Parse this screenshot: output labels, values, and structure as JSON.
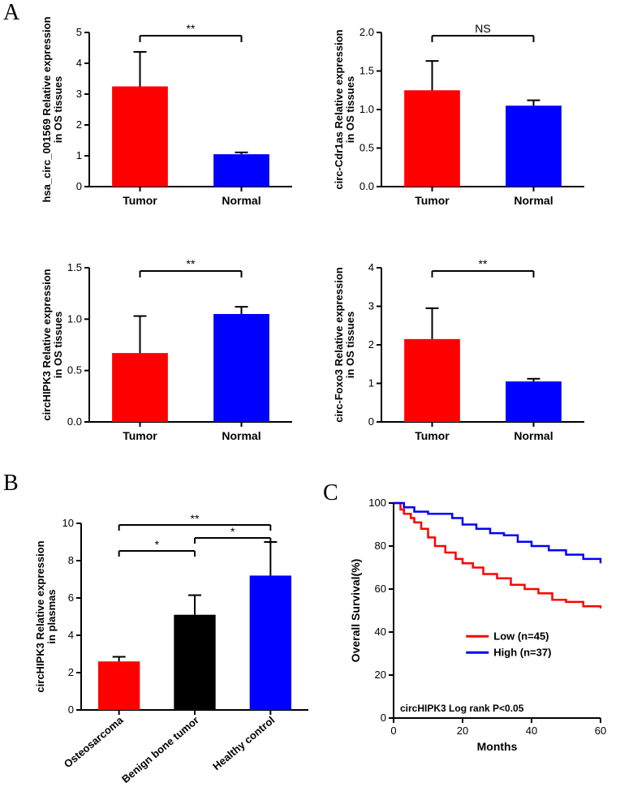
{
  "panelLabels": {
    "A": "A",
    "B": "B",
    "C": "C"
  },
  "barRed": "#ff0000",
  "barBlue": "#0000ff",
  "barBlack": "#000000",
  "axis": "#000000",
  "text": "#000000",
  "fontFamily": "Arial, Helvetica, sans-serif",
  "axisFontSize": 14,
  "labelFontSize": 14,
  "tickFontSize": 13,
  "barWidth": 0.55,
  "A": [
    {
      "ylabel": "hsa_circ_001569 Relative expression",
      "ylabel2": "in OS tissues",
      "ylim": [
        0,
        5
      ],
      "yticks": [
        0,
        1,
        2,
        3,
        4,
        5
      ],
      "categories": [
        "Tumor",
        "Normal"
      ],
      "values": [
        3.25,
        1.05
      ],
      "errors": [
        1.12,
        0.06
      ],
      "colors": [
        "#ff0000",
        "#0000ff"
      ],
      "sig": "**"
    },
    {
      "ylabel": "circ-Cdr1as Relative expression",
      "ylabel2": "in OS tissues",
      "ylim": [
        0,
        2.0
      ],
      "yticks": [
        0,
        0.5,
        1.0,
        1.5,
        2.0
      ],
      "categories": [
        "Tumor",
        "Normal"
      ],
      "values": [
        1.25,
        1.05
      ],
      "errors": [
        0.38,
        0.07
      ],
      "colors": [
        "#ff0000",
        "#0000ff"
      ],
      "sig": "NS"
    },
    {
      "ylabel": "circHIPK3 Relative expression",
      "ylabel2": "in OS tissues",
      "ylim": [
        0,
        1.5
      ],
      "yticks": [
        0,
        0.5,
        1.0,
        1.5
      ],
      "categories": [
        "Tumor",
        "Normal"
      ],
      "values": [
        0.67,
        1.05
      ],
      "errors": [
        0.36,
        0.07
      ],
      "colors": [
        "#ff0000",
        "#0000ff"
      ],
      "sig": "**"
    },
    {
      "ylabel": "circ-Foxo3 Relative expression",
      "ylabel2": "in OS tissues",
      "ylim": [
        0,
        4
      ],
      "yticks": [
        0,
        1,
        2,
        3,
        4
      ],
      "categories": [
        "Tumor",
        "Normal"
      ],
      "values": [
        2.15,
        1.05
      ],
      "errors": [
        0.8,
        0.07
      ],
      "colors": [
        "#ff0000",
        "#0000ff"
      ],
      "sig": "**"
    }
  ],
  "B": {
    "ylabel": "circHIPK3 Relative expression",
    "ylabel2": "in plasmas",
    "ylim": [
      0,
      10
    ],
    "yticks": [
      0,
      2,
      4,
      6,
      8,
      10
    ],
    "categories": [
      "Osteosarcoma",
      "Benign bone tumor",
      "Healthy control"
    ],
    "values": [
      2.6,
      5.1,
      7.2
    ],
    "errors": [
      0.25,
      1.05,
      1.8
    ],
    "colors": [
      "#ff0000",
      "#000000",
      "#0000ff"
    ],
    "sigBars": [
      {
        "from": 0,
        "to": 1,
        "label": "*",
        "level": 1
      },
      {
        "from": 1,
        "to": 2,
        "label": "*",
        "level": 2
      },
      {
        "from": 0,
        "to": 2,
        "label": "**",
        "level": 3
      }
    ]
  },
  "C": {
    "xlabel": "Months",
    "ylabel": "Overall Survival(%)",
    "xlim": [
      0,
      60
    ],
    "xticks": [
      0,
      20,
      40,
      60
    ],
    "ylim": [
      0,
      100
    ],
    "yticks": [
      0,
      20,
      40,
      60,
      80,
      100
    ],
    "series": [
      {
        "name": "Low (n=45)",
        "color": "#ff0000",
        "points": [
          [
            0,
            100
          ],
          [
            2,
            97
          ],
          [
            3,
            95
          ],
          [
            5,
            93
          ],
          [
            6,
            91
          ],
          [
            8,
            88
          ],
          [
            10,
            84
          ],
          [
            12,
            80
          ],
          [
            15,
            77
          ],
          [
            18,
            74
          ],
          [
            20,
            72
          ],
          [
            23,
            70
          ],
          [
            26,
            67
          ],
          [
            30,
            65
          ],
          [
            34,
            62
          ],
          [
            38,
            60
          ],
          [
            42,
            58
          ],
          [
            46,
            55
          ],
          [
            50,
            54
          ],
          [
            55,
            52
          ],
          [
            60,
            51
          ]
        ]
      },
      {
        "name": "High (n=37)",
        "color": "#0000ff",
        "points": [
          [
            0,
            100
          ],
          [
            3,
            98
          ],
          [
            6,
            96
          ],
          [
            10,
            95
          ],
          [
            14,
            95
          ],
          [
            17,
            93
          ],
          [
            20,
            90
          ],
          [
            24,
            88
          ],
          [
            28,
            86
          ],
          [
            32,
            85
          ],
          [
            36,
            82
          ],
          [
            40,
            80
          ],
          [
            45,
            78
          ],
          [
            50,
            76
          ],
          [
            55,
            74
          ],
          [
            60,
            72
          ]
        ]
      }
    ],
    "note": "circHIPK3 Log rank P<0.05"
  }
}
